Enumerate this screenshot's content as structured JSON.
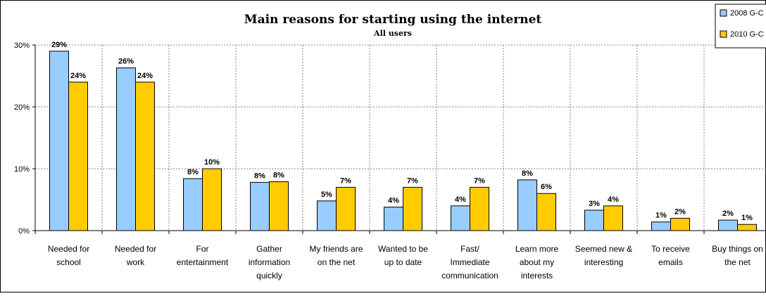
{
  "chart_data": {
    "type": "bar",
    "title": "Main reasons for starting using the internet",
    "subtitle": "All users",
    "xlabel": "",
    "ylabel": "",
    "ylim": [
      0,
      30
    ],
    "yticks": [
      "0%",
      "10%",
      "20%",
      "30%"
    ],
    "grid": true,
    "legend_position": "top-right",
    "categories": [
      [
        "Needed for",
        "school"
      ],
      [
        "Needed for",
        "work"
      ],
      [
        "For",
        "entertainment"
      ],
      [
        "Gather",
        "information",
        "quickly"
      ],
      [
        "My friends are",
        "on the net"
      ],
      [
        "Wanted to be",
        "up to date"
      ],
      [
        "Fast/",
        "Immediate",
        "communication"
      ],
      [
        "Learn more",
        "about my",
        "interests"
      ],
      [
        "Seemed new &",
        "interesting"
      ],
      [
        "To receive",
        "emails"
      ],
      [
        "Buy things on",
        "the net"
      ]
    ],
    "series": [
      {
        "name": "2008 G-C",
        "color": "#99ccff",
        "values": [
          29,
          26.3,
          8.4,
          7.8,
          4.8,
          3.8,
          4.0,
          8.2,
          3.3,
          1.4,
          1.7
        ],
        "labels": [
          "29%",
          "26%",
          "8%",
          "8%",
          "5%",
          "4%",
          "4%",
          "8%",
          "3%",
          "1%",
          "2%"
        ]
      },
      {
        "name": "2010 G-C",
        "color": "#ffcc00",
        "values": [
          24,
          24,
          10,
          7.9,
          7,
          7,
          7,
          6,
          4,
          2,
          1
        ],
        "labels": [
          "24%",
          "24%",
          "10%",
          "8%",
          "7%",
          "7%",
          "7%",
          "6%",
          "4%",
          "2%",
          "1%"
        ]
      }
    ]
  }
}
